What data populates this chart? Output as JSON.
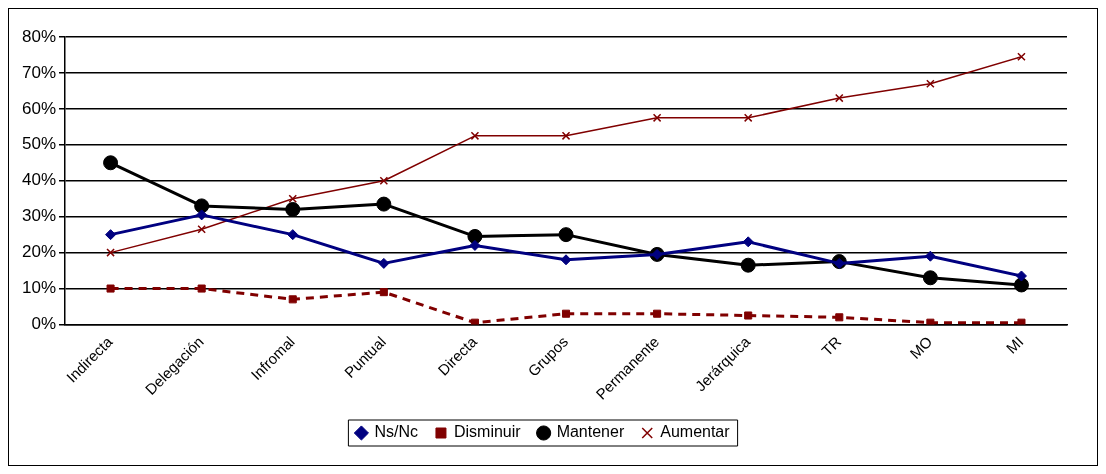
{
  "chart_data": {
    "type": "line",
    "categories": [
      "Indirecta",
      "Delegación",
      "Infromal",
      "Puntual",
      "Directa",
      "Grupos",
      "Permanente",
      "Jerárquica",
      "TR",
      "MO",
      "MI"
    ],
    "series": [
      {
        "name": "Ns/Nc",
        "color": "#000080",
        "marker": "diamond",
        "line_style": "solid",
        "values": [
          25,
          30.5,
          25,
          17,
          22,
          18,
          19.5,
          23,
          17,
          19,
          13.5
        ]
      },
      {
        "name": "Disminuir",
        "color": "#800000",
        "marker": "square",
        "line_style": "dashed",
        "values": [
          10,
          10,
          7,
          9,
          0.5,
          3,
          3,
          2.5,
          2,
          0.5,
          0.5
        ]
      },
      {
        "name": "Mantener",
        "color": "#000000",
        "marker": "circle",
        "line_style": "solid",
        "values": [
          45,
          33,
          32,
          33.5,
          24.5,
          25,
          19.5,
          16.5,
          17.5,
          13,
          11
        ]
      },
      {
        "name": "Aumentar",
        "color": "#800000",
        "marker": "cross",
        "line_style": "solid",
        "values": [
          20,
          26.5,
          35,
          40,
          52.5,
          52.5,
          57.5,
          57.5,
          63,
          67,
          74.5
        ]
      }
    ],
    "ylim": [
      0,
      80
    ],
    "yticks": [
      {
        "value": 0,
        "label": "0%"
      },
      {
        "value": 10,
        "label": "10%"
      },
      {
        "value": 20,
        "label": "20%"
      },
      {
        "value": 30,
        "label": "30%"
      },
      {
        "value": 40,
        "label": "40%"
      },
      {
        "value": 50,
        "label": "50%"
      },
      {
        "value": 60,
        "label": "60%"
      },
      {
        "value": 70,
        "label": "70%"
      },
      {
        "value": 80,
        "label": "80%"
      }
    ],
    "grid": "y",
    "legend": "bottom"
  }
}
